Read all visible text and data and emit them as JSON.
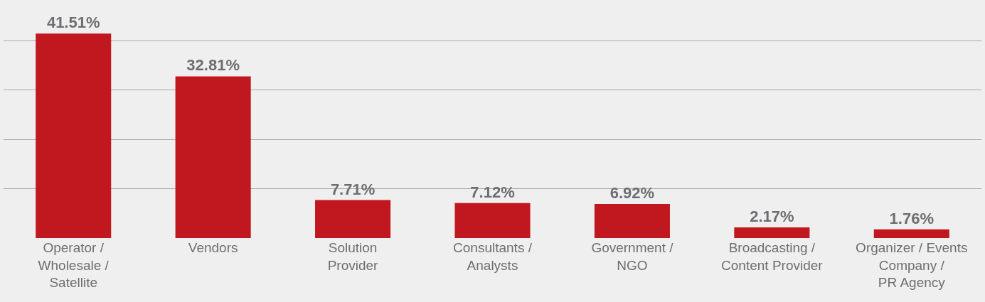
{
  "chart_data": {
    "type": "bar",
    "categories": [
      "Operator /\nWholesale /\nSatellite",
      "Vendors",
      "Solution\nProvider",
      "Consultants /\nAnalysts",
      "Government /\nNGO",
      "Broadcasting /\nContent Provider",
      "Organizer / Events\nCompany /\nPR Agency"
    ],
    "values": [
      41.51,
      32.81,
      7.71,
      7.12,
      6.92,
      2.17,
      1.76
    ],
    "value_labels": [
      "41.51%",
      "32.81%",
      "7.71%",
      "7.12%",
      "6.92%",
      "2.17%",
      "1.76%"
    ],
    "color": "#c1181f",
    "grid": "y",
    "tick_labels": "x",
    "legend": false
  }
}
